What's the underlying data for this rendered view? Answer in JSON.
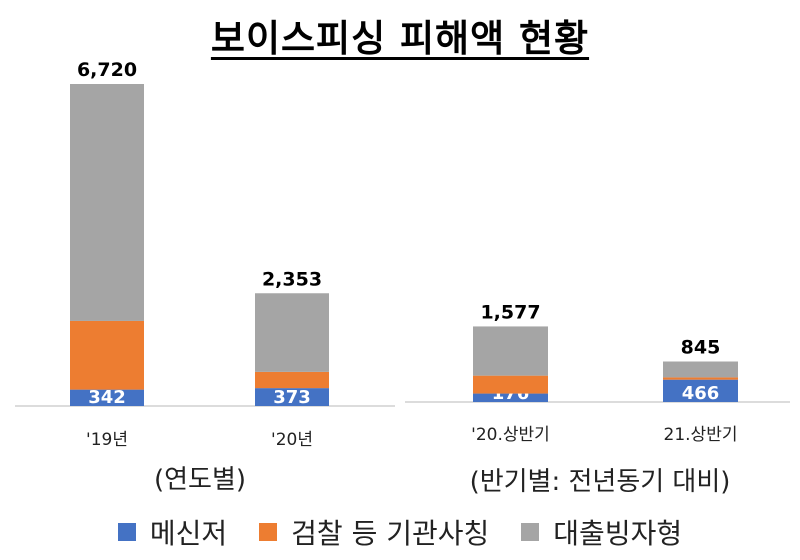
{
  "title": "보이스피싱 피해액 현황",
  "colors": {
    "messenger": "#4472C4",
    "agency": "#ED7D31",
    "loan": "#A5A5A5"
  },
  "legend": [
    {
      "key": "messenger",
      "label": "메신저"
    },
    {
      "key": "agency",
      "label": "검찰 등 기관사칭"
    },
    {
      "key": "loan",
      "label": "대출빙자형"
    }
  ],
  "chart_data": [
    {
      "type": "bar",
      "stacked": true,
      "subtitle": "(연도별)",
      "categories": [
        "'19년",
        "'20년"
      ],
      "totals": [
        "6,720",
        "2,353"
      ],
      "series": [
        {
          "name": "메신저",
          "values": [
            342,
            373
          ],
          "labels": [
            "342",
            "373"
          ]
        },
        {
          "name": "검찰 등 기관사칭",
          "values": [
            1433,
            339
          ]
        },
        {
          "name": "대출빙자형",
          "values": [
            4945,
            1641
          ]
        }
      ],
      "ylim": [
        0,
        6720
      ]
    },
    {
      "type": "bar",
      "stacked": true,
      "subtitle": "(반기별: 전년동기 대비)",
      "categories": [
        "'20.상반기",
        "21.상반기"
      ],
      "totals": [
        "1,577",
        "845"
      ],
      "series": [
        {
          "name": "메신저",
          "values": [
            176,
            466
          ],
          "labels": [
            "176",
            "466"
          ]
        },
        {
          "name": "검찰 등 기관사칭",
          "values": [
            374,
            47
          ]
        },
        {
          "name": "대출빙자형",
          "values": [
            1027,
            332
          ]
        }
      ],
      "ylim": [
        0,
        6720
      ]
    }
  ]
}
